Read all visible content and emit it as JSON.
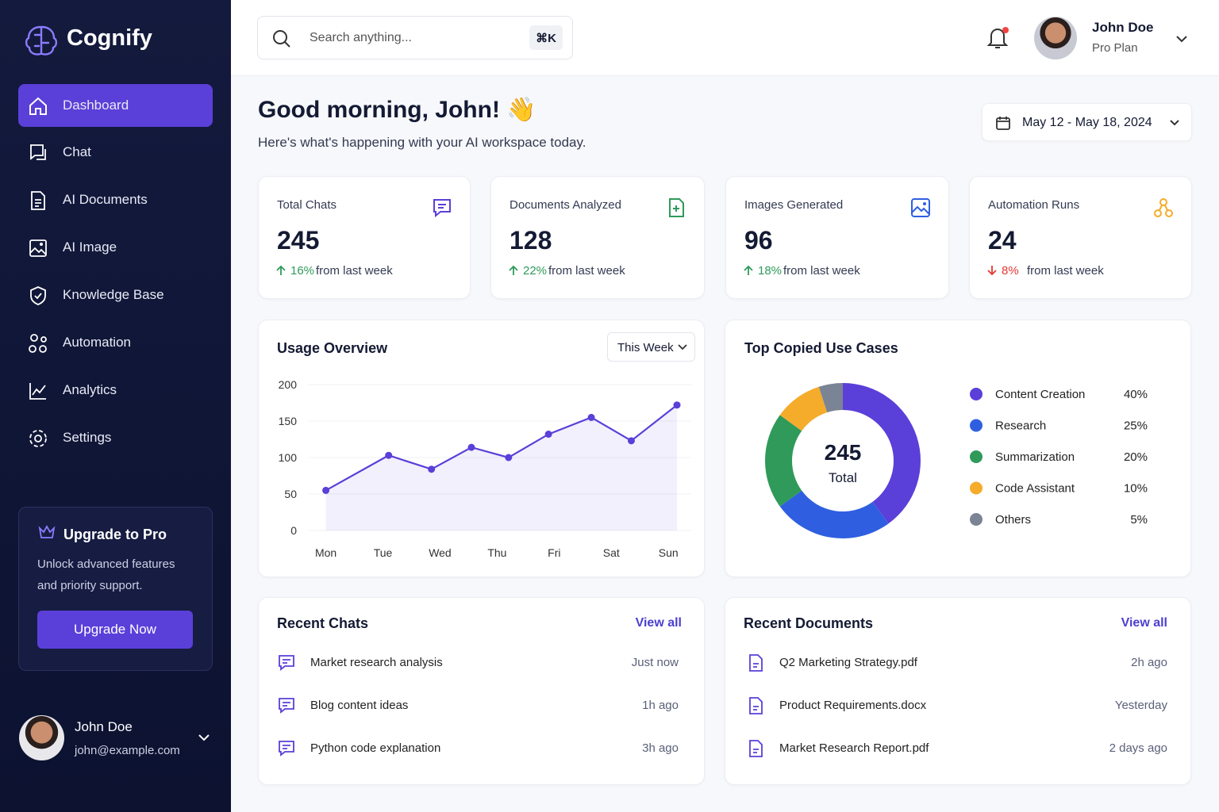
{
  "sidebar": {
    "brand": "Cognify",
    "nav": [
      "Dashboard",
      "Chat",
      "AI Documents",
      "AI Image",
      "Knowledge Base",
      "Automation",
      "Analytics",
      "Settings"
    ],
    "upgrade": {
      "title": "Upgrade to Pro",
      "text": "Unlock advanced features and priority support.",
      "button": "Upgrade Now"
    },
    "user": {
      "name": "John Doe",
      "email": "john@example.com"
    }
  },
  "header": {
    "search_placeholder": "Search anything...",
    "shortcut": "⌘K",
    "user": {
      "name": "John Doe",
      "plan": "Pro Plan"
    }
  },
  "greeting": {
    "title": "Good morning, John!",
    "emoji": "👋",
    "subtitle": "Here's what's happening with your AI workspace today.",
    "date_range": "May 12 - May 18, 2024"
  },
  "stats": [
    {
      "label": "Total Chats",
      "value": 245,
      "change": "16%",
      "note": "from last week"
    },
    {
      "label": "Documents Analyzed",
      "value": 128,
      "change": "22%",
      "note": "from last week"
    },
    {
      "label": "Images Generated",
      "value": 96,
      "change": "18%",
      "note": "from last week"
    },
    {
      "label": "Automation Runs",
      "value": 24,
      "change": "8%",
      "note": "from last week"
    }
  ],
  "usage_chart": {
    "type": "line",
    "title": "Usage Overview",
    "filter": "This Week",
    "x": [
      0,
      1.1,
      1.85,
      2.55,
      3.2,
      3.9,
      4.65,
      5.35,
      6.15
    ],
    "values": [
      55,
      103,
      84,
      114,
      100,
      132,
      155,
      123,
      172
    ],
    "xticks": [
      {
        "value": 0,
        "label": "Mon"
      },
      {
        "value": 1,
        "label": "Tue"
      },
      {
        "value": 2,
        "label": "Wed"
      },
      {
        "value": 3,
        "label": "Thu"
      },
      {
        "value": 4,
        "label": "Fri"
      },
      {
        "value": 5,
        "label": "Sat"
      },
      {
        "value": 6,
        "label": "Sun"
      }
    ],
    "xlim": [
      -0.3,
      6.4
    ],
    "ylim": [
      0,
      200
    ],
    "yticks": [
      0,
      50,
      100,
      150,
      200
    ],
    "color": "#5b3fd9",
    "grid": true
  },
  "usecase_chart": {
    "type": "pie",
    "title": "Top Copied Use Cases",
    "center_value": 245,
    "center_label": "Total",
    "categories": [
      "Content Creation",
      "Research",
      "Summarization",
      "Code Assistant",
      "Others"
    ],
    "values": [
      40,
      25,
      20,
      10,
      5
    ],
    "value_labels": [
      "40%",
      "25%",
      "20%",
      "10%",
      "5%"
    ],
    "colors": [
      "#5b3fd9",
      "#2f5fe0",
      "#2f9a5a",
      "#f5ac2a",
      "#7b8494"
    ]
  },
  "recent_chats": {
    "title": "Recent Chats",
    "link": "View all",
    "items": [
      {
        "title": "Market research analysis",
        "time": "Just now"
      },
      {
        "title": "Blog content ideas",
        "time": "1h ago"
      },
      {
        "title": "Python code explanation",
        "time": "3h ago"
      }
    ]
  },
  "recent_documents": {
    "title": "Recent Documents",
    "link": "View all",
    "items": [
      {
        "title": "Q2 Marketing Strategy.pdf",
        "time": "2h ago"
      },
      {
        "title": "Product Requirements.docx",
        "time": "Yesterday"
      },
      {
        "title": "Market Research Report.pdf",
        "time": "2 days ago"
      }
    ]
  }
}
